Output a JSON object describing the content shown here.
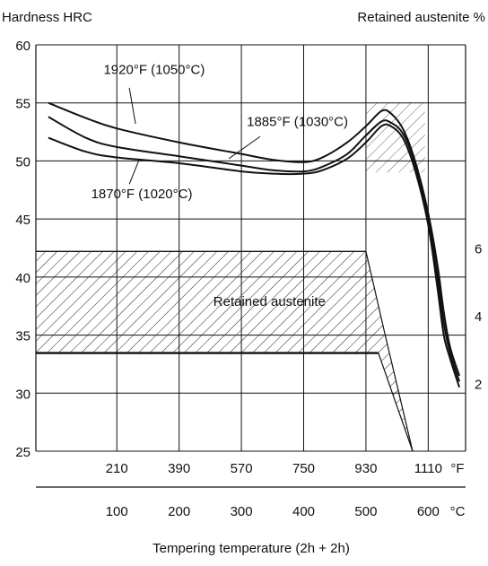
{
  "chart_data": {
    "type": "line",
    "y_title_left": "Hardness HRC",
    "y_title_right": "Retained austenite %",
    "xlabel": "Tempering temperature (2h + 2h)",
    "ylim": [
      25,
      60
    ],
    "y_ticks": [
      60,
      55,
      50,
      45,
      40,
      35,
      30,
      25
    ],
    "right_ylim": [
      0,
      12
    ],
    "right_ticks": [
      6,
      4,
      2
    ],
    "xlim_c": [
      -30,
      660
    ],
    "x_ticks_f": [
      "210",
      "390",
      "570",
      "750",
      "930",
      "1110"
    ],
    "x_unit_f": "°F",
    "x_ticks_c": [
      "100",
      "200",
      "300",
      "400",
      "500",
      "600"
    ],
    "x_unit_c": "°C",
    "series": [
      {
        "name": "1920°F (1050°C)",
        "x": [
          -10,
          50,
          100,
          200,
          300,
          350,
          400,
          430,
          470,
          500,
          525,
          540,
          560,
          580,
          600,
          615,
          625,
          635,
          650
        ],
        "y": [
          55.0,
          53.7,
          52.8,
          51.6,
          50.6,
          50.1,
          49.9,
          50.3,
          51.6,
          53.0,
          54.3,
          54.1,
          52.7,
          49.8,
          45.5,
          41.0,
          37.0,
          34.0,
          31.5
        ]
      },
      {
        "name": "1885°F (1030°C)",
        "x": [
          -10,
          50,
          100,
          200,
          300,
          350,
          400,
          430,
          470,
          500,
          525,
          540,
          560,
          580,
          600,
          615,
          625,
          635,
          650
        ],
        "y": [
          53.8,
          52.0,
          51.2,
          50.4,
          49.6,
          49.2,
          49.1,
          49.5,
          50.6,
          52.2,
          53.4,
          53.3,
          52.3,
          49.5,
          45.0,
          40.0,
          36.0,
          33.5,
          31.0
        ]
      },
      {
        "name": "1870°F (1020°C)",
        "x": [
          -10,
          50,
          100,
          200,
          300,
          350,
          400,
          430,
          470,
          500,
          525,
          540,
          560,
          580,
          600,
          615,
          625,
          635,
          650
        ],
        "y": [
          52.0,
          50.8,
          50.3,
          49.8,
          49.1,
          48.9,
          48.9,
          49.2,
          50.2,
          51.6,
          53.0,
          53.0,
          51.9,
          49.0,
          44.5,
          39.0,
          35.0,
          33.0,
          30.5
        ]
      }
    ],
    "annotations": [
      {
        "text": "1920°F (1050°C)",
        "x": 160,
        "y": 57.5
      },
      {
        "text": "1885°F (1030°C)",
        "x": 390,
        "y": 53.0
      },
      {
        "text": "1870°F (1020°C)",
        "x": 140,
        "y": 46.8
      },
      {
        "text": "Retained austenite",
        "x": 345,
        "y": 37.5
      }
    ],
    "retained_austenite_band": {
      "label": "Retained austenite",
      "lower_percent": 2.9,
      "upper_percent": 5.9,
      "x_start_c": -30,
      "upper_edge_x": [
        500,
        530,
        575
      ],
      "upper_edge_y": [
        5.9,
        3.5,
        0
      ],
      "lower_edge_x": [
        520,
        575
      ],
      "lower_edge_y": [
        2.9,
        0
      ]
    },
    "hatched_peak_region": {
      "x": [
        500,
        595
      ],
      "y": [
        49,
        55
      ]
    },
    "grid": true
  }
}
